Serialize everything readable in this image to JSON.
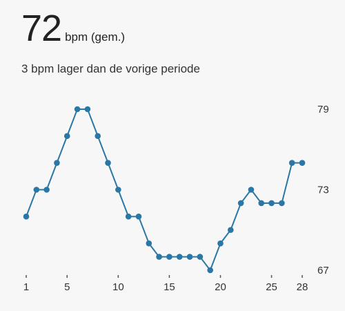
{
  "header": {
    "value": "72",
    "unit": "bpm (gem.)",
    "subtitle": "3 bpm lager dan de vorige periode"
  },
  "colors": {
    "line": "#2a77a6",
    "background": "#f6f7f6",
    "text": "#222222"
  },
  "chart_data": {
    "type": "line",
    "x": [
      1,
      2,
      3,
      4,
      5,
      6,
      7,
      8,
      9,
      10,
      11,
      12,
      13,
      14,
      15,
      16,
      17,
      18,
      19,
      20,
      21,
      22,
      23,
      24,
      25,
      26,
      27,
      28
    ],
    "values": [
      71,
      73,
      73,
      75,
      77,
      79,
      79,
      77,
      75,
      73,
      71,
      71,
      69,
      68,
      68,
      68,
      68,
      68,
      67,
      69,
      70,
      72,
      73,
      72,
      72,
      72,
      75,
      75
    ],
    "x_ticks": [
      1,
      5,
      10,
      15,
      20,
      25,
      28
    ],
    "y_ticks": [
      67,
      73,
      79
    ],
    "ylim": [
      67,
      79
    ],
    "xlim": [
      1,
      28
    ],
    "y_axis_position": "right",
    "grid": false
  }
}
